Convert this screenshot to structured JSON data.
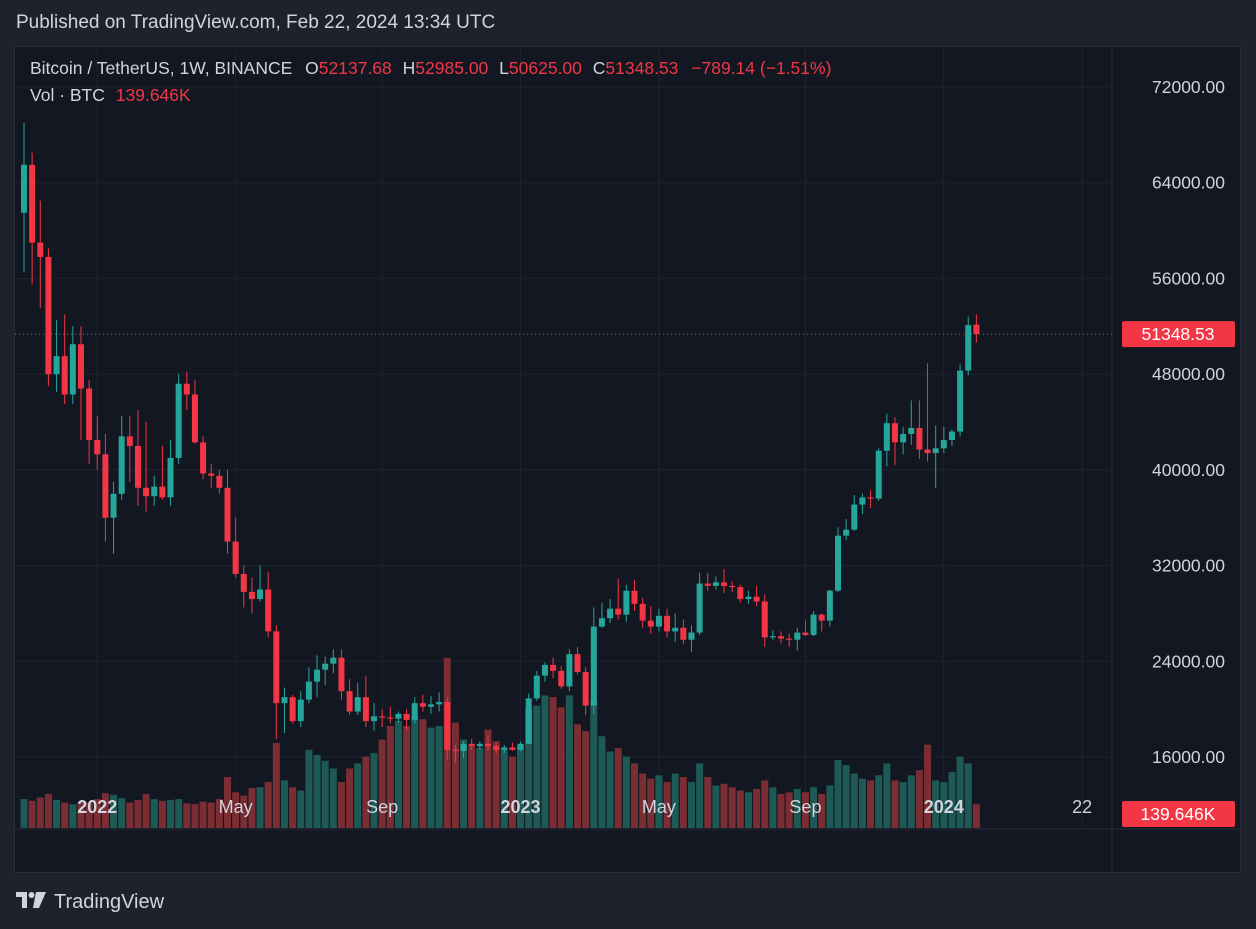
{
  "publish_bar": {
    "text": "Published on TradingView.com, Feb 22, 2024 13:34 UTC"
  },
  "legend": {
    "symbol": "Bitcoin / TetherUS, 1W, BINANCE",
    "o_label": "O",
    "o_value": "52137.68",
    "h_label": "H",
    "h_value": "52985.00",
    "l_label": "L",
    "l_value": "50625.00",
    "c_label": "C",
    "c_value": "51348.53",
    "change": "−789.14 (−1.51%)",
    "vol_label": "Vol · BTC",
    "vol_value": "139.646K"
  },
  "footer": {
    "brand": "TradingView"
  },
  "colors": {
    "up": "#26a69a",
    "down": "#f23645",
    "up_vol": "#1e5a55",
    "down_vol": "#7a2d32",
    "background": "#131722",
    "grid": "#1f2330",
    "text": "#d1d4dc"
  },
  "chart_data": {
    "type": "candlestick",
    "interval": "1W",
    "symbol": "BTCUSDT",
    "exchange": "BINANCE",
    "price_range": [
      10000,
      75000
    ],
    "price_ticks": [
      "72000.00",
      "64000.00",
      "56000.00",
      "48000.00",
      "40000.00",
      "32000.00",
      "24000.00",
      "16000.00"
    ],
    "price_tick_values": [
      72000,
      64000,
      56000,
      48000,
      40000,
      32000,
      24000,
      16000
    ],
    "time_ticks": [
      {
        "label": "2022",
        "index": 9,
        "bold": true
      },
      {
        "label": "May",
        "index": 26,
        "bold": false
      },
      {
        "label": "Sep",
        "index": 44,
        "bold": false
      },
      {
        "label": "2023",
        "index": 61,
        "bold": true
      },
      {
        "label": "May",
        "index": 78,
        "bold": false
      },
      {
        "label": "Sep",
        "index": 96,
        "bold": false
      },
      {
        "label": "2024",
        "index": 113,
        "bold": true
      },
      {
        "label": "22",
        "index": 130,
        "bold": false
      }
    ],
    "last_price_label": "51348.53",
    "last_price": 51348.53,
    "last_volume_label": "139.646K",
    "volume_max": 1000000,
    "candles": [
      [
        61500,
        69000,
        56500,
        65500,
        170000
      ],
      [
        65500,
        66500,
        55500,
        59000,
        160000
      ],
      [
        59000,
        62500,
        53500,
        57800,
        180000
      ],
      [
        57800,
        58500,
        47000,
        48000,
        200000
      ],
      [
        48000,
        52500,
        46500,
        49500,
        165000
      ],
      [
        49500,
        53000,
        45500,
        46300,
        150000
      ],
      [
        46300,
        52000,
        45500,
        50500,
        140000
      ],
      [
        50500,
        52000,
        42500,
        46800,
        155000
      ],
      [
        46800,
        47500,
        40500,
        42500,
        150000
      ],
      [
        42500,
        44500,
        40000,
        41300,
        170000
      ],
      [
        41300,
        43000,
        34000,
        36000,
        205000
      ],
      [
        36000,
        39000,
        33000,
        38000,
        195000
      ],
      [
        38000,
        44500,
        37500,
        42800,
        175000
      ],
      [
        42800,
        44500,
        39000,
        42000,
        150000
      ],
      [
        42000,
        45000,
        37000,
        38500,
        165000
      ],
      [
        38500,
        44000,
        36500,
        37800,
        200000
      ],
      [
        37800,
        39500,
        37000,
        38600,
        170000
      ],
      [
        38600,
        42000,
        37500,
        37700,
        160000
      ],
      [
        37700,
        42500,
        37000,
        41000,
        165000
      ],
      [
        41000,
        48000,
        40500,
        47200,
        170000
      ],
      [
        47200,
        48200,
        45000,
        46300,
        145000
      ],
      [
        46300,
        47500,
        42200,
        42300,
        140000
      ],
      [
        42300,
        42800,
        39200,
        39700,
        155000
      ],
      [
        39700,
        40500,
        38500,
        39500,
        150000
      ],
      [
        39500,
        40000,
        38000,
        38500,
        170000
      ],
      [
        38500,
        40000,
        33000,
        34000,
        300000
      ],
      [
        34000,
        36000,
        31000,
        31300,
        210000
      ],
      [
        31300,
        32000,
        28500,
        29800,
        190000
      ],
      [
        29800,
        31000,
        28000,
        29200,
        235000
      ],
      [
        29200,
        32000,
        29000,
        30000,
        240000
      ],
      [
        30000,
        31500,
        26000,
        26500,
        270000
      ],
      [
        26500,
        27000,
        17500,
        20500,
        500000
      ],
      [
        20500,
        21800,
        18000,
        21000,
        280000
      ],
      [
        21000,
        21200,
        18800,
        19000,
        240000
      ],
      [
        19000,
        21500,
        18500,
        20800,
        220000
      ],
      [
        20800,
        23500,
        20500,
        22300,
        460000
      ],
      [
        22300,
        24500,
        21000,
        23300,
        430000
      ],
      [
        23300,
        24400,
        22000,
        23800,
        395000
      ],
      [
        23800,
        25000,
        23000,
        24300,
        350000
      ],
      [
        24300,
        25000,
        20800,
        21500,
        270000
      ],
      [
        21500,
        22500,
        19500,
        19800,
        350000
      ],
      [
        19800,
        22200,
        19500,
        21000,
        380000
      ],
      [
        21000,
        22800,
        18500,
        19000,
        420000
      ],
      [
        19000,
        20500,
        18200,
        19400,
        440000
      ],
      [
        19400,
        20000,
        18500,
        19300,
        520000
      ],
      [
        19300,
        20200,
        18800,
        19200,
        600000
      ],
      [
        19200,
        19800,
        18900,
        19600,
        630000
      ],
      [
        19600,
        20000,
        18200,
        19100,
        600000
      ],
      [
        19100,
        21000,
        18800,
        20500,
        660000
      ],
      [
        20500,
        21200,
        19800,
        20200,
        640000
      ],
      [
        20200,
        21100,
        19600,
        20400,
        590000
      ],
      [
        20400,
        21400,
        19800,
        20600,
        600000
      ],
      [
        20600,
        21000,
        15700,
        16600,
        1000000
      ],
      [
        16600,
        17000,
        15500,
        16500,
        620000
      ],
      [
        16500,
        17300,
        15900,
        17100,
        520000
      ],
      [
        17100,
        17500,
        16600,
        16900,
        480000
      ],
      [
        16900,
        17300,
        16600,
        17100,
        470000
      ],
      [
        17100,
        17800,
        16500,
        16900,
        580000
      ],
      [
        16900,
        17200,
        16300,
        16600,
        510000
      ],
      [
        16600,
        17000,
        16300,
        16800,
        460000
      ],
      [
        16800,
        17200,
        16500,
        16600,
        420000
      ],
      [
        16600,
        17300,
        16500,
        17100,
        490000
      ],
      [
        17100,
        21300,
        17100,
        20900,
        700000
      ],
      [
        20900,
        23200,
        20700,
        22800,
        720000
      ],
      [
        22800,
        23900,
        22300,
        23700,
        780000
      ],
      [
        23700,
        24300,
        22600,
        23200,
        770000
      ],
      [
        23200,
        23600,
        21700,
        21900,
        710000
      ],
      [
        21900,
        25000,
        21500,
        24600,
        780000
      ],
      [
        24600,
        25200,
        22900,
        23100,
        610000
      ],
      [
        23100,
        23500,
        19500,
        20300,
        570000
      ],
      [
        20300,
        28500,
        19600,
        26900,
        750000
      ],
      [
        26900,
        28900,
        26800,
        27600,
        540000
      ],
      [
        27600,
        29200,
        27200,
        28400,
        450000
      ],
      [
        28400,
        30900,
        27500,
        27900,
        470000
      ],
      [
        27900,
        30400,
        27300,
        29900,
        420000
      ],
      [
        29900,
        30800,
        28200,
        28800,
        380000
      ],
      [
        28800,
        29300,
        26800,
        27400,
        320000
      ],
      [
        27400,
        28600,
        26300,
        26900,
        290000
      ],
      [
        26900,
        28400,
        26500,
        27800,
        310000
      ],
      [
        27800,
        28400,
        26000,
        26500,
        270000
      ],
      [
        26500,
        28000,
        25600,
        26800,
        320000
      ],
      [
        26800,
        27500,
        25400,
        25800,
        300000
      ],
      [
        25800,
        27000,
        24800,
        26400,
        270000
      ],
      [
        26400,
        31400,
        26200,
        30500,
        380000
      ],
      [
        30500,
        31400,
        29900,
        30300,
        300000
      ],
      [
        30300,
        31100,
        30000,
        30600,
        250000
      ],
      [
        30600,
        31700,
        29700,
        30300,
        260000
      ],
      [
        30300,
        30700,
        29800,
        30200,
        240000
      ],
      [
        30200,
        30400,
        28900,
        29200,
        220000
      ],
      [
        29200,
        29900,
        28800,
        29400,
        210000
      ],
      [
        29400,
        30300,
        28600,
        29000,
        230000
      ],
      [
        29000,
        29600,
        25200,
        26000,
        280000
      ],
      [
        26000,
        26600,
        25800,
        26100,
        240000
      ],
      [
        26100,
        26500,
        25500,
        25900,
        200000
      ],
      [
        25900,
        26300,
        25200,
        25800,
        210000
      ],
      [
        25800,
        26800,
        24900,
        26400,
        230000
      ],
      [
        26400,
        27400,
        26100,
        26200,
        210000
      ],
      [
        26200,
        28200,
        26100,
        27900,
        240000
      ],
      [
        27900,
        28000,
        26500,
        27400,
        200000
      ],
      [
        27400,
        30000,
        26900,
        29900,
        250000
      ],
      [
        29900,
        35200,
        29800,
        34500,
        400000
      ],
      [
        34500,
        35900,
        34100,
        35000,
        370000
      ],
      [
        35000,
        37900,
        34900,
        37100,
        320000
      ],
      [
        37100,
        38000,
        36300,
        37700,
        290000
      ],
      [
        37700,
        38300,
        36800,
        37600,
        280000
      ],
      [
        37600,
        41800,
        37400,
        41600,
        310000
      ],
      [
        41600,
        44700,
        40300,
        43900,
        380000
      ],
      [
        43900,
        44400,
        40400,
        42300,
        280000
      ],
      [
        42300,
        43600,
        41300,
        43000,
        270000
      ],
      [
        43000,
        45800,
        42100,
        43500,
        310000
      ],
      [
        43500,
        45800,
        40900,
        41700,
        340000
      ],
      [
        41700,
        48900,
        40700,
        41400,
        490000
      ],
      [
        41400,
        43700,
        38500,
        41800,
        280000
      ],
      [
        41800,
        43600,
        41400,
        42500,
        270000
      ],
      [
        42500,
        43400,
        42000,
        43200,
        330000
      ],
      [
        43200,
        48800,
        42800,
        48300,
        420000
      ],
      [
        48300,
        52800,
        47900,
        52100,
        380000
      ],
      [
        52137.68,
        52985,
        50625,
        51348.53,
        139646
      ]
    ]
  }
}
